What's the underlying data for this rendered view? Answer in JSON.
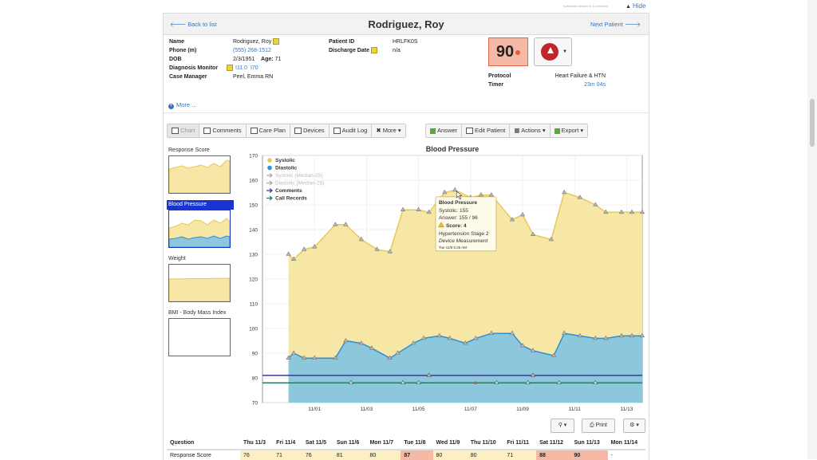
{
  "top": {
    "autosave_note": "Automatic detach in 10 minutes",
    "hide_label": "Hide"
  },
  "header": {
    "back_label": "Back to list",
    "patient_name": "Rodriguez, Roy",
    "next_label": "Next Patient"
  },
  "patient": {
    "name_label": "Name",
    "name": "Rodriguez, Roy",
    "phone_label": "Phone (m)",
    "phone": "(555) 268-1512",
    "dob_label": "DOB",
    "dob": "2/3/1951",
    "age_label": "Age:",
    "age": "71",
    "diag_label": "Diagnosis Monitor",
    "diag1": "I11.0",
    "diag2": "I70",
    "cm_label": "Case Manager",
    "cm": "Peel, Emma RN",
    "pid_label": "Patient ID",
    "pid": "HRLFK0S",
    "discharge_label": "Discharge Date",
    "discharge": "n/a",
    "score": "90",
    "protocol_label": "Protocol",
    "protocol": "Heart Failure & HTN",
    "timer_label": "Timer",
    "timer": "23m 04s",
    "more_label": "More ..."
  },
  "tabs": {
    "chart": "Chart",
    "comments": "Comments",
    "care_plan": "Care Plan",
    "devices": "Devices",
    "audit_log": "Audit Log",
    "more": "More",
    "answer": "Answer",
    "edit_patient": "Edit Patient",
    "actions": "Actions",
    "export": "Export"
  },
  "thumbs": {
    "response": "Response Score",
    "bp": "Blood Pressure",
    "weight": "Weight",
    "bmi": "BMI - Body Mass Index"
  },
  "chart_data": {
    "type": "area",
    "title": "Blood Pressure",
    "ylim": [
      70,
      170
    ],
    "yticks": [
      70,
      80,
      90,
      100,
      110,
      120,
      130,
      140,
      150,
      160,
      170
    ],
    "xticks": [
      "11/01",
      "11/03",
      "11/05",
      "11/07",
      "11/09",
      "11/11",
      "11/13"
    ],
    "legend": [
      "Systolic",
      "Diastolic",
      "Systolic (Median-25)",
      "Diastolic (Median-25)",
      "Comments",
      "Call Records"
    ],
    "legend_position": "top-left",
    "colors": {
      "systolic": "#f7e7a6",
      "systolic_line": "#e6c85a",
      "diastolic": "#8cc7dc",
      "diastolic_line": "#2e8fd6",
      "comments": "#3a3a9a",
      "calls": "#2a7a6a"
    },
    "series": [
      {
        "name": "Systolic",
        "x": [
          0,
          0.1,
          0.3,
          0.5,
          0.9,
          1.1,
          1.4,
          1.7,
          1.95,
          2.2,
          2.5,
          2.7,
          3.0,
          3.2,
          3.5,
          3.7,
          3.9,
          4.3,
          4.5,
          4.7,
          5.05,
          5.3,
          5.6,
          5.9,
          6.1,
          6.4,
          6.6,
          6.8
        ],
        "values": [
          130,
          128,
          132,
          133,
          142,
          142,
          136,
          132,
          131,
          148,
          148,
          147,
          155,
          156,
          153,
          154,
          154,
          144,
          146,
          138,
          136,
          155,
          153,
          150,
          147,
          147,
          147,
          147
        ]
      },
      {
        "name": "Diastolic",
        "x": [
          0,
          0.1,
          0.3,
          0.5,
          0.9,
          1.1,
          1.4,
          1.6,
          1.95,
          2.1,
          2.4,
          2.6,
          2.9,
          3.1,
          3.4,
          3.6,
          3.9,
          4.3,
          4.5,
          4.7,
          5.1,
          5.3,
          5.6,
          5.9,
          6.1,
          6.4,
          6.6,
          6.8
        ],
        "values": [
          88,
          90,
          88,
          88,
          88,
          95,
          94,
          92,
          88,
          90,
          94,
          96,
          97,
          96,
          94,
          96,
          98,
          98,
          93,
          91,
          89,
          98,
          97,
          96,
          96,
          97,
          97,
          97
        ]
      }
    ],
    "comments_y": 81,
    "calls_y": 78,
    "tooltip": {
      "title": "Blood Pressure",
      "systolic": "Systolic: 155",
      "answer": "Answer: 155 / 96",
      "score": "Score: 4",
      "stage": "Hypertension Stage 2",
      "source": "Device Measurement",
      "time": "Tue 11/8 6:25 AM"
    }
  },
  "bottom": {
    "print": "Print"
  },
  "table": {
    "question_header": "Question",
    "days": [
      "Thu 11/3",
      "Fri 11/4",
      "Sat 11/5",
      "Sun 11/6",
      "Mon 11/7",
      "Tue 11/8",
      "Wed 11/9",
      "Thu 11/10",
      "Fri 11/11",
      "Sat 11/12",
      "Sun 11/13",
      "Mon 11/14"
    ],
    "row_label": "Response Score",
    "row_values": [
      "76",
      "71",
      "76",
      "81",
      "80",
      "87",
      "80",
      "80",
      "71",
      "88",
      "90",
      "-"
    ]
  }
}
